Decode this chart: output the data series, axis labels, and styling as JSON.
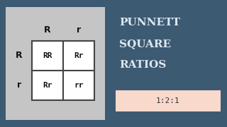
{
  "bg_color": "#3d5a73",
  "left_panel_color": "#c5c5c5",
  "grid_bg_color": "#ffffff",
  "grid_border_color": "#444444",
  "title_lines": [
    "PUNNETT",
    "SQUARE",
    "RATIOS"
  ],
  "title_color": "#dce8f0",
  "ratio_text": "1:2:1",
  "ratio_bg": "#f9d9cc",
  "ratio_text_color": "#333333",
  "col_headers": [
    "R",
    "r"
  ],
  "row_headers": [
    "R",
    "r"
  ],
  "cells": [
    [
      "RR",
      "Rr"
    ],
    [
      "Rr",
      "rr"
    ]
  ],
  "header_color": "#111111",
  "cell_text_color": "#111111",
  "fig_w": 3.2,
  "fig_h": 1.8,
  "dpi": 100
}
